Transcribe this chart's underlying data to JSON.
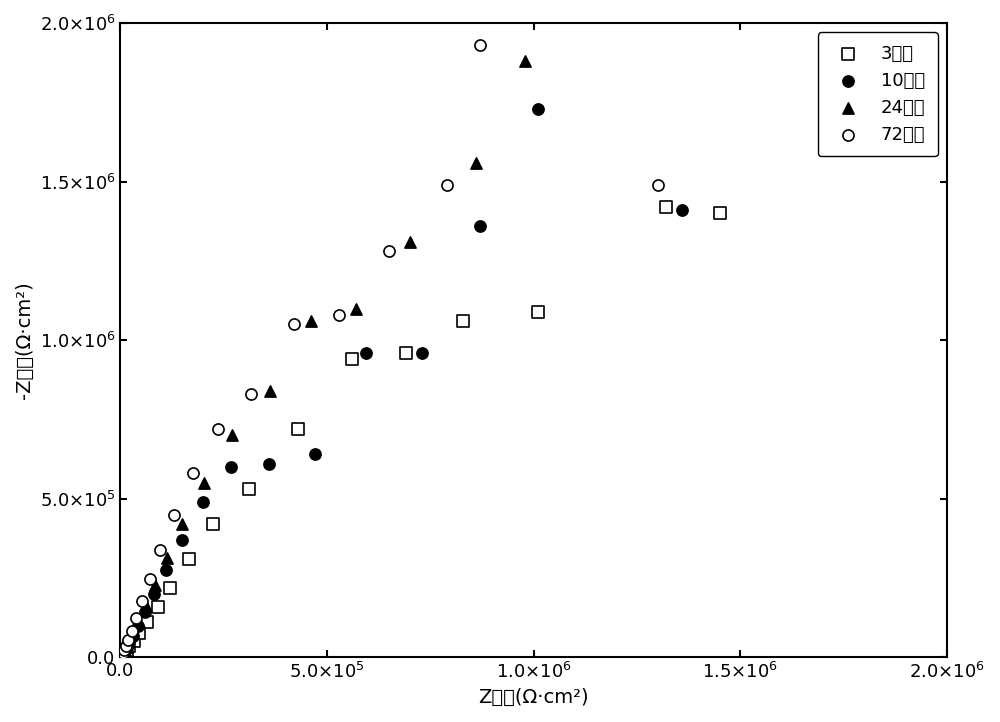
{
  "series": {
    "3h": {
      "label": "3小时",
      "marker": "s",
      "color": "black",
      "facecolor": "white",
      "x": [
        1000,
        3000,
        6000,
        10000,
        15000,
        22000,
        32000,
        46000,
        65000,
        90000,
        120000,
        165000,
        225000,
        310000,
        430000,
        560000,
        690000,
        830000,
        1010000,
        1320000,
        1450000
      ],
      "y": [
        1000,
        4000,
        9000,
        15000,
        24000,
        35000,
        53000,
        78000,
        112000,
        160000,
        220000,
        310000,
        420000,
        530000,
        720000,
        940000,
        960000,
        1060000,
        1090000,
        1420000,
        1400000
      ]
    },
    "10h": {
      "label": "10小时",
      "marker": "o",
      "color": "black",
      "facecolor": "black",
      "x": [
        1000,
        3000,
        6000,
        10000,
        15000,
        21000,
        30000,
        43000,
        60000,
        82000,
        110000,
        148000,
        200000,
        268000,
        360000,
        470000,
        595000,
        730000,
        870000,
        1010000,
        1360000
      ],
      "y": [
        1000,
        5000,
        11000,
        19000,
        30000,
        45000,
        67000,
        99000,
        143000,
        200000,
        275000,
        370000,
        490000,
        600000,
        610000,
        640000,
        960000,
        960000,
        1360000,
        1730000,
        1410000
      ]
    },
    "24h": {
      "label": "24小时",
      "marker": "^",
      "color": "black",
      "facecolor": "black",
      "x": [
        1000,
        3000,
        6000,
        10000,
        15000,
        22000,
        31000,
        44000,
        61000,
        83000,
        112000,
        150000,
        202000,
        271000,
        363000,
        460000,
        570000,
        700000,
        860000,
        980000
      ],
      "y": [
        2000,
        6000,
        13000,
        22000,
        34000,
        52000,
        77000,
        113000,
        163000,
        228000,
        315000,
        420000,
        550000,
        700000,
        840000,
        1060000,
        1100000,
        1310000,
        1560000,
        1880000
      ]
    },
    "72h": {
      "label": "72小时",
      "marker": "o",
      "color": "black",
      "facecolor": "white",
      "x": [
        1000,
        3000,
        5500,
        9000,
        13000,
        19000,
        27000,
        38000,
        53000,
        72000,
        97000,
        130000,
        175000,
        235000,
        315000,
        420000,
        530000,
        650000,
        790000,
        870000,
        1300000
      ],
      "y": [
        2000,
        7000,
        14000,
        24000,
        37000,
        56000,
        84000,
        124000,
        178000,
        248000,
        340000,
        450000,
        580000,
        720000,
        830000,
        1050000,
        1080000,
        1280000,
        1490000,
        1930000,
        1490000
      ]
    }
  },
  "xlim": [
    0,
    2000000
  ],
  "ylim": [
    0,
    2000000
  ],
  "xlabel": "Z实部(Ω·cm²)",
  "ylabel": "-Z虚部(Ω·cm²)",
  "xticks": [
    0.0,
    500000,
    1000000,
    1500000,
    2000000
  ],
  "yticks": [
    0.0,
    500000,
    1000000,
    1500000,
    2000000
  ],
  "legend_loc": "upper right",
  "marker_size": 64,
  "linewidth": 0,
  "bg_color": "#ffffff"
}
